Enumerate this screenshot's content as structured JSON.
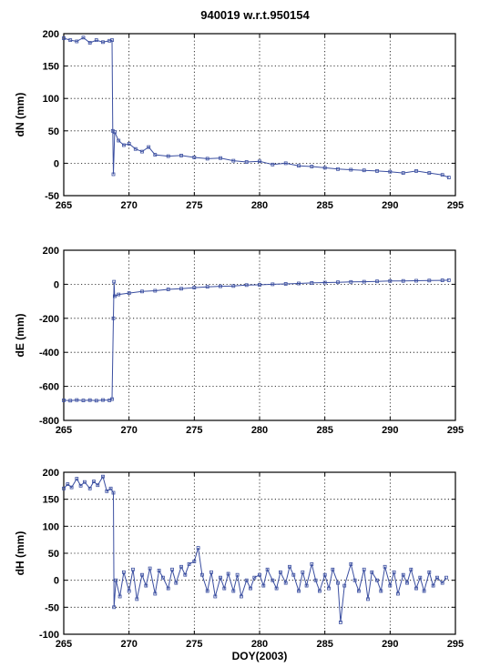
{
  "title": "940019 w.r.t.950154",
  "colors": {
    "series": "#3a4ea0",
    "axis": "#000000",
    "grid": "#000000"
  },
  "chart_data": [
    {
      "type": "line",
      "ylabel": "dN (mm)",
      "xlabel": "",
      "xlim": [
        265,
        295
      ],
      "ylim": [
        -50,
        200
      ],
      "xticks": [
        265,
        270,
        275,
        280,
        285,
        290,
        295
      ],
      "yticks": [
        -50,
        0,
        50,
        100,
        150,
        200
      ],
      "grid": true,
      "series": [
        {
          "x": [
            265.0,
            265.5,
            266.0,
            266.5,
            267.0,
            267.5,
            268.0,
            268.5,
            268.7,
            268.75,
            268.8,
            268.9,
            269.2,
            269.6,
            270.0,
            270.5,
            271.0,
            271.5,
            272.0,
            273.0,
            274.0,
            275.0,
            276.0,
            277.0,
            278.0,
            279.0,
            280.0,
            281.0,
            282.0,
            283.0,
            284.0,
            285.0,
            286.0,
            287.0,
            288.0,
            289.0,
            290.0,
            291.0,
            292.0,
            293.0,
            294.0,
            294.5
          ],
          "y": [
            193,
            190,
            188,
            194,
            186,
            190,
            187,
            189,
            190,
            50,
            -17,
            48,
            35,
            28,
            30,
            22,
            18,
            25,
            13,
            11,
            12,
            9,
            7,
            8,
            4,
            2,
            3,
            -2,
            0,
            -4,
            -5,
            -7,
            -9,
            -10,
            -11,
            -12,
            -13,
            -15,
            -12,
            -15,
            -18,
            -22
          ]
        }
      ]
    },
    {
      "type": "line",
      "ylabel": "dE (mm)",
      "xlabel": "",
      "xlim": [
        265,
        295
      ],
      "ylim": [
        -800,
        200
      ],
      "xticks": [
        265,
        270,
        275,
        280,
        285,
        290,
        295
      ],
      "yticks": [
        -800,
        -600,
        -400,
        -200,
        0,
        200
      ],
      "grid": true,
      "series": [
        {
          "x": [
            265.0,
            265.5,
            266.0,
            266.5,
            267.0,
            267.5,
            268.0,
            268.5,
            268.7,
            268.8,
            268.85,
            268.9,
            269.2,
            270.0,
            271.0,
            272.0,
            273.0,
            274.0,
            275.0,
            276.0,
            277.0,
            278.0,
            279.0,
            280.0,
            281.0,
            282.0,
            283.0,
            284.0,
            285.0,
            286.0,
            287.0,
            288.0,
            289.0,
            290.0,
            291.0,
            292.0,
            293.0,
            294.0,
            294.5
          ],
          "y": [
            -682,
            -684,
            -680,
            -683,
            -681,
            -684,
            -680,
            -682,
            -675,
            -200,
            15,
            -70,
            -60,
            -52,
            -42,
            -38,
            -30,
            -26,
            -20,
            -15,
            -12,
            -10,
            -5,
            -3,
            0,
            2,
            5,
            8,
            10,
            12,
            14,
            15,
            17,
            19,
            20,
            21,
            22,
            23,
            24
          ]
        }
      ]
    },
    {
      "type": "line",
      "ylabel": "dH (mm)",
      "xlabel": "DOY(2003)",
      "xlim": [
        265,
        295
      ],
      "ylim": [
        -100,
        200
      ],
      "xticks": [
        265,
        270,
        275,
        280,
        285,
        290,
        295
      ],
      "yticks": [
        -100,
        -50,
        0,
        50,
        100,
        150,
        200
      ],
      "grid": true,
      "series": [
        {
          "x": [
            265.0,
            265.3,
            265.6,
            266.0,
            266.3,
            266.6,
            267.0,
            267.3,
            267.6,
            268.0,
            268.3,
            268.6,
            268.8,
            268.85,
            269.0,
            269.3,
            269.6,
            270.0,
            270.3,
            270.6,
            271.0,
            271.3,
            271.6,
            272.0,
            272.3,
            272.6,
            273.0,
            273.3,
            273.6,
            274.0,
            274.3,
            274.6,
            275.0,
            275.3,
            275.6,
            276.0,
            276.3,
            276.6,
            277.0,
            277.3,
            277.6,
            278.0,
            278.3,
            278.6,
            279.0,
            279.3,
            279.6,
            280.0,
            280.3,
            280.6,
            281.0,
            281.3,
            281.6,
            282.0,
            282.3,
            282.6,
            283.0,
            283.3,
            283.6,
            284.0,
            284.3,
            284.6,
            285.0,
            285.3,
            285.6,
            286.0,
            286.2,
            286.5,
            287.0,
            287.3,
            287.6,
            288.0,
            288.3,
            288.6,
            289.0,
            289.3,
            289.6,
            290.0,
            290.3,
            290.6,
            291.0,
            291.3,
            291.6,
            292.0,
            292.3,
            292.6,
            293.0,
            293.3,
            293.6,
            294.0,
            294.3
          ],
          "y": [
            170,
            178,
            172,
            188,
            175,
            182,
            170,
            183,
            176,
            192,
            165,
            170,
            162,
            -50,
            0,
            -30,
            15,
            -20,
            20,
            -35,
            10,
            -10,
            22,
            -25,
            18,
            5,
            -15,
            20,
            -5,
            25,
            10,
            30,
            35,
            60,
            10,
            -20,
            15,
            -30,
            5,
            -15,
            12,
            -20,
            10,
            -30,
            0,
            -15,
            5,
            10,
            -10,
            20,
            0,
            -15,
            15,
            -5,
            25,
            10,
            -20,
            15,
            -10,
            30,
            0,
            -20,
            10,
            -15,
            20,
            -5,
            -78,
            -10,
            30,
            0,
            -20,
            20,
            -35,
            15,
            0,
            -20,
            25,
            -10,
            15,
            -25,
            10,
            -5,
            20,
            -15,
            5,
            -20,
            15,
            -10,
            5,
            -5,
            5
          ]
        }
      ]
    }
  ]
}
